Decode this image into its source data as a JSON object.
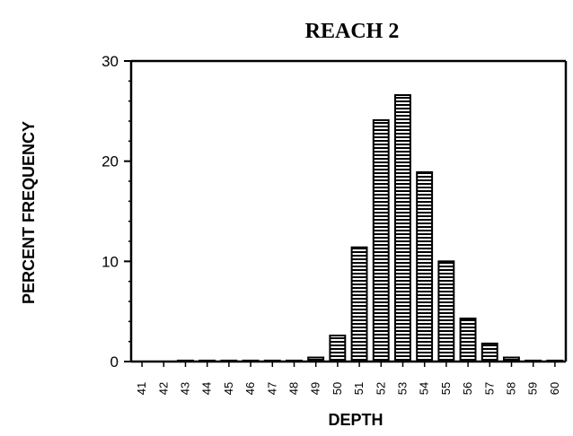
{
  "chart_data": {
    "type": "bar",
    "title": "REACH 2",
    "xlabel": "DEPTH",
    "ylabel": "PERCENT FREQUENCY",
    "ylim": [
      0,
      30
    ],
    "yticks": [
      0,
      10,
      20,
      30
    ],
    "categories": [
      "41",
      "42",
      "43",
      "44",
      "45",
      "46",
      "47",
      "48",
      "49",
      "50",
      "51",
      "52",
      "53",
      "54",
      "55",
      "56",
      "57",
      "58",
      "59",
      "60"
    ],
    "values": [
      0,
      0,
      0.1,
      0.1,
      0.1,
      0.1,
      0.1,
      0.1,
      0.4,
      2.6,
      11.4,
      24.1,
      26.6,
      18.9,
      10.0,
      4.3,
      1.8,
      0.4,
      0.1,
      0.1
    ],
    "bar_fill": "horizontal-hatch",
    "grid": false,
    "legend": "none"
  }
}
